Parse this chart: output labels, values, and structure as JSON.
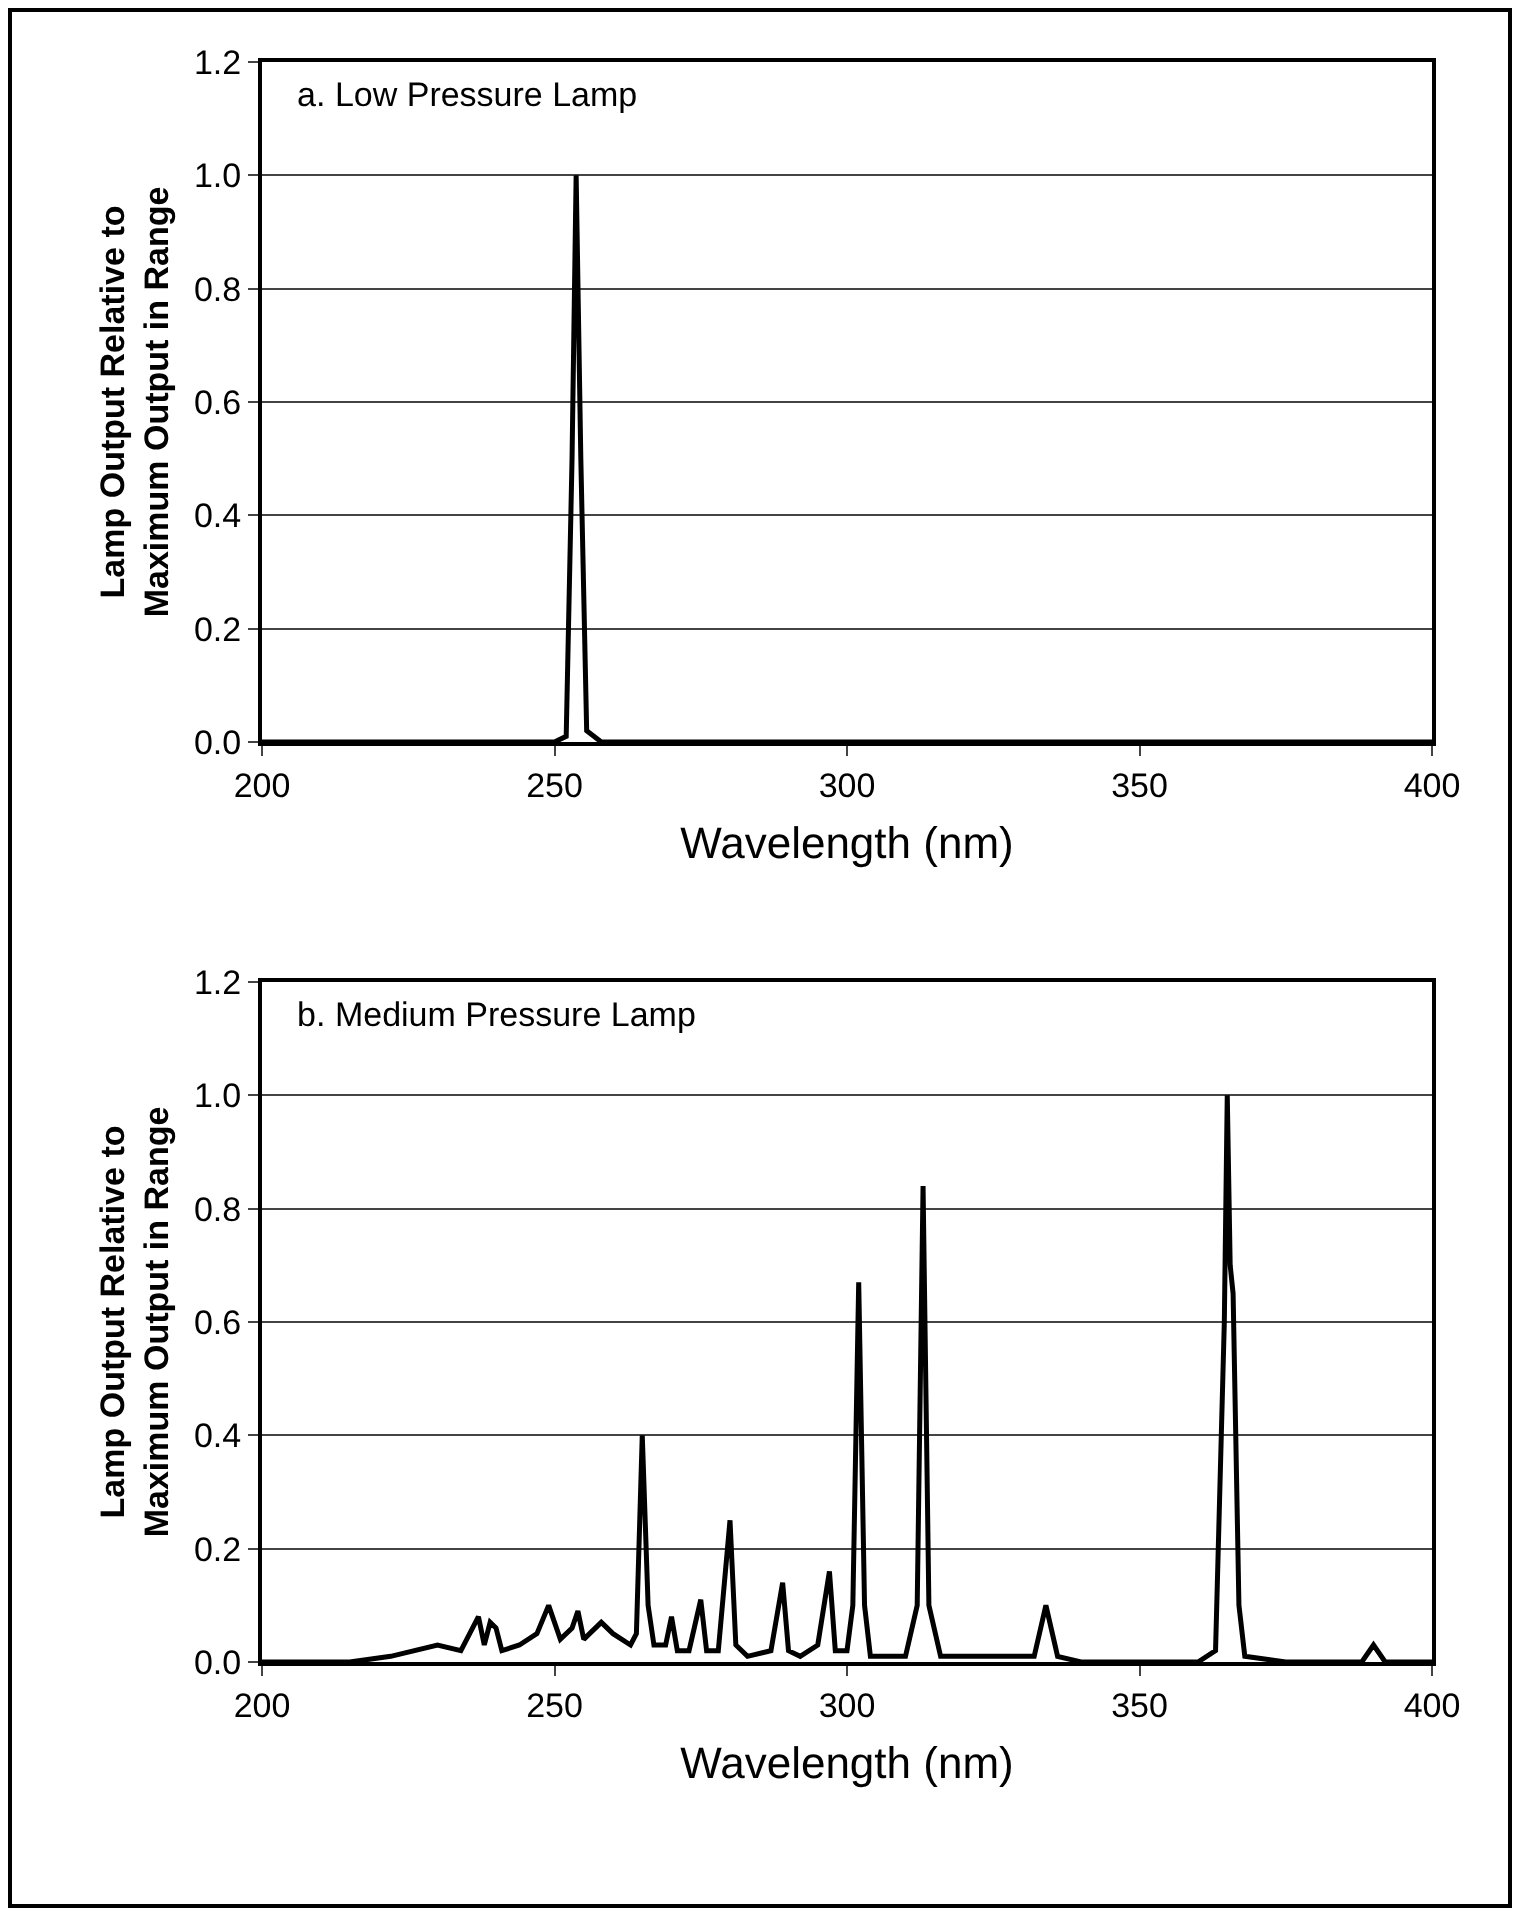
{
  "chart_data": [
    {
      "type": "line",
      "title": "a. Low Pressure Lamp",
      "xlabel": "Wavelength (nm)",
      "ylabel": "Lamp Output Relative to Maximum Output in Range",
      "series": [
        {
          "color": "#000000",
          "x": [
            200,
            240,
            250,
            252,
            253,
            253.7,
            254.5,
            255.5,
            258,
            300,
            350,
            400
          ],
          "values": [
            0,
            0,
            0,
            0.01,
            0.5,
            1.0,
            0.5,
            0.02,
            0,
            0,
            0,
            0
          ]
        }
      ],
      "xlim": [
        200,
        400
      ],
      "xticks": [
        200,
        250,
        300,
        350,
        400
      ],
      "ylim": [
        0,
        1.2
      ],
      "yticks": [
        {
          "value": 0,
          "label": "0.0"
        },
        {
          "value": 0.2,
          "label": "0.2"
        },
        {
          "value": 0.4,
          "label": "0.4"
        },
        {
          "value": 0.6,
          "label": "0.6"
        },
        {
          "value": 0.8,
          "label": "0.8"
        },
        {
          "value": 1,
          "label": "1.0"
        },
        {
          "value": 1.2,
          "label": "1.2"
        }
      ],
      "grid": "y",
      "marker": "none",
      "line_style": "solid"
    },
    {
      "type": "line",
      "title": "b. Medium Pressure Lamp",
      "xlabel": "Wavelength (nm)",
      "ylabel": "Lamp Output Relative to Maximum Output in Range",
      "series": [
        {
          "color": "#000000",
          "x": [
            200,
            215,
            222,
            230,
            234,
            237,
            238,
            239,
            240,
            241,
            244,
            247,
            249,
            251,
            253,
            254,
            255,
            256,
            258,
            260,
            263,
            264,
            265,
            266,
            267,
            269,
            270,
            271,
            273,
            275,
            276,
            278,
            280,
            281,
            283,
            287,
            289,
            290,
            292,
            295,
            297,
            298,
            300,
            301,
            302,
            303,
            304,
            310,
            312,
            313,
            314,
            316,
            320,
            332,
            334,
            336,
            340,
            360,
            363,
            364.5,
            365,
            365.5,
            366,
            367,
            368,
            375,
            388,
            390,
            392,
            400
          ],
          "values": [
            0,
            0,
            0.01,
            0.03,
            0.02,
            0.08,
            0.03,
            0.07,
            0.06,
            0.02,
            0.03,
            0.05,
            0.1,
            0.04,
            0.06,
            0.09,
            0.04,
            0.05,
            0.07,
            0.05,
            0.03,
            0.05,
            0.4,
            0.1,
            0.03,
            0.03,
            0.08,
            0.02,
            0.02,
            0.11,
            0.02,
            0.02,
            0.25,
            0.03,
            0.01,
            0.02,
            0.14,
            0.02,
            0.01,
            0.03,
            0.16,
            0.02,
            0.02,
            0.1,
            0.67,
            0.1,
            0.01,
            0.01,
            0.1,
            0.84,
            0.1,
            0.01,
            0.01,
            0.01,
            0.1,
            0.01,
            0,
            0,
            0.02,
            0.6,
            1.0,
            0.7,
            0.65,
            0.1,
            0.01,
            0,
            0,
            0.03,
            0,
            0
          ]
        }
      ],
      "xlim": [
        200,
        400
      ],
      "xticks": [
        200,
        250,
        300,
        350,
        400
      ],
      "ylim": [
        0,
        1.2
      ],
      "yticks": [
        {
          "value": 0,
          "label": "0.0"
        },
        {
          "value": 0.2,
          "label": "0.2"
        },
        {
          "value": 0.4,
          "label": "0.4"
        },
        {
          "value": 0.6,
          "label": "0.6"
        },
        {
          "value": 0.8,
          "label": "0.8"
        },
        {
          "value": 1,
          "label": "1.0"
        },
        {
          "value": 1.2,
          "label": "1.2"
        }
      ],
      "grid": "y",
      "marker": "none",
      "line_style": "solid"
    }
  ]
}
